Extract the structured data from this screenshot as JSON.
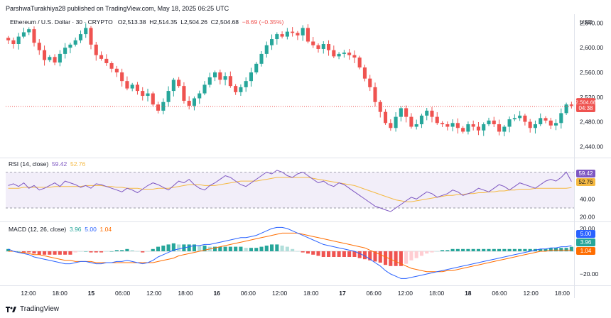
{
  "header": {
    "text": "ParshwaTurakhiya28 published on TradingView.com, May 18, 2025 06:25 UTC"
  },
  "symbol_bar": {
    "name": "Ethereum / U.S. Dollar · 30 · CRYPTO",
    "o": "O2,513.38",
    "h": "H2,514.35",
    "l": "L2,504.26",
    "c": "C2,504.68",
    "change": "−8.69 (−0.35%)"
  },
  "currency": "USD",
  "price_badge": {
    "price": "2,504.68",
    "countdown": "04:38"
  },
  "rsi_legend": {
    "label": "RSI (14, close)",
    "rsi": "59.42",
    "ma": "52.76"
  },
  "macd_legend": {
    "label": "MACD (12, 26, close)",
    "hist": "3.96",
    "macd": "5.00",
    "signal": "1.04"
  },
  "branding": {
    "text": "TradingView"
  },
  "colors": {
    "up": "#26a69a",
    "down": "#ef5350",
    "rsi": "#7e57c2",
    "rsi_ma": "#f5b942",
    "macd": "#2962ff",
    "signal": "#ff6d00"
  },
  "chart_data": [
    {
      "type": "candlestick",
      "title": "Ethereum / U.S. Dollar · 30 · CRYPTO",
      "x_ticks": [
        "12:00",
        "18:00",
        "15",
        "06:00",
        "12:00",
        "18:00",
        "16",
        "06:00",
        "12:00",
        "18:00",
        "17",
        "06:00",
        "12:00",
        "18:00",
        "18",
        "06:00",
        "12:00",
        "18:00"
      ],
      "y_ticks": [
        2440,
        2480,
        2520,
        2560,
        2600,
        2640
      ],
      "ylim": [
        2422,
        2652
      ],
      "last_price": 2504.68,
      "closes": [
        2612,
        2606,
        2618,
        2625,
        2630,
        2608,
        2596,
        2580,
        2585,
        2576,
        2590,
        2600,
        2605,
        2612,
        2622,
        2632,
        2605,
        2588,
        2582,
        2575,
        2566,
        2560,
        2546,
        2534,
        2540,
        2530,
        2522,
        2526,
        2508,
        2498,
        2512,
        2530,
        2548,
        2538,
        2514,
        2506,
        2518,
        2526,
        2540,
        2552,
        2560,
        2548,
        2554,
        2538,
        2528,
        2536,
        2546,
        2560,
        2574,
        2590,
        2604,
        2614,
        2622,
        2618,
        2626,
        2624,
        2620,
        2632,
        2610,
        2604,
        2598,
        2606,
        2596,
        2586,
        2590,
        2592,
        2588,
        2584,
        2568,
        2550,
        2536,
        2512,
        2496,
        2478,
        2470,
        2488,
        2502,
        2488,
        2472,
        2476,
        2490,
        2498,
        2488,
        2478,
        2476,
        2472,
        2478,
        2470,
        2464,
        2476,
        2472,
        2466,
        2476,
        2482,
        2476,
        2464,
        2472,
        2484,
        2486,
        2490,
        2480,
        2470,
        2476,
        2486,
        2482,
        2474,
        2478,
        2494,
        2508,
        2506
      ]
    },
    {
      "type": "line",
      "title": "RSI (14, close)",
      "y_ticks": [
        20,
        40
      ],
      "ylim": [
        15,
        83
      ],
      "levels": [
        70,
        30
      ],
      "series": [
        {
          "name": "RSI",
          "values": [
            55,
            57,
            54,
            58,
            52,
            55,
            50,
            52,
            55,
            58,
            54,
            60,
            58,
            56,
            53,
            55,
            52,
            57,
            56,
            54,
            52,
            50,
            48,
            52,
            50,
            47,
            51,
            55,
            58,
            56,
            53,
            50,
            55,
            60,
            58,
            62,
            56,
            52,
            50,
            55,
            58,
            62,
            66,
            64,
            60,
            56,
            54,
            58,
            62,
            66,
            70,
            68,
            72,
            70,
            66,
            64,
            68,
            70,
            66,
            62,
            58,
            60,
            56,
            54,
            58,
            56,
            52,
            48,
            44,
            40,
            36,
            32,
            30,
            28,
            26,
            30,
            34,
            38,
            42,
            40,
            44,
            48,
            46,
            42,
            44,
            46,
            50,
            48,
            44,
            46,
            48,
            52,
            50,
            48,
            52,
            56,
            54,
            50,
            54,
            58,
            56,
            54,
            52,
            56,
            60,
            62,
            60,
            64,
            70,
            59.42
          ]
        },
        {
          "name": "RSI MA",
          "values": [
            52,
            52,
            52,
            53,
            53,
            53,
            53,
            53,
            53,
            54,
            54,
            54,
            54,
            54,
            54,
            55,
            55,
            55,
            55,
            54,
            54,
            53,
            53,
            52,
            52,
            52,
            51,
            51,
            51,
            52,
            52,
            52,
            53,
            54,
            55,
            56,
            56,
            56,
            55,
            55,
            55,
            56,
            57,
            58,
            59,
            60,
            60,
            60,
            60,
            61,
            62,
            63,
            64,
            64,
            64,
            64,
            64,
            64,
            64,
            63,
            62,
            61,
            60,
            59,
            58,
            57,
            56,
            55,
            53,
            51,
            49,
            47,
            45,
            43,
            41,
            39,
            38,
            37,
            37,
            38,
            39,
            40,
            41,
            42,
            43,
            44,
            44,
            45,
            45,
            46,
            46,
            47,
            47,
            48,
            48,
            49,
            49,
            50,
            50,
            51,
            51,
            51,
            52,
            52,
            52,
            52,
            52,
            52,
            52,
            52.76
          ]
        }
      ]
    },
    {
      "type": "bar+line",
      "title": "MACD (12, 26, close)",
      "y_ticks": [
        -20,
        20
      ],
      "ylim": [
        -30,
        25
      ],
      "series": [
        {
          "name": "MACD",
          "values": [
            2,
            0,
            -1,
            -2,
            -3,
            -5,
            -6,
            -7,
            -8,
            -9,
            -10,
            -11,
            -11,
            -10,
            -9,
            -9,
            -10,
            -11,
            -11,
            -10,
            -10,
            -9,
            -9,
            -8,
            -9,
            -10,
            -11,
            -10,
            -8,
            -5,
            -3,
            -1,
            1,
            2,
            3,
            4,
            5,
            5,
            6,
            6,
            7,
            8,
            9,
            10,
            11,
            12,
            12,
            13,
            14,
            16,
            18,
            20,
            21,
            21,
            20,
            18,
            16,
            14,
            12,
            10,
            8,
            6,
            5,
            4,
            3,
            2,
            1,
            0,
            -2,
            -4,
            -7,
            -10,
            -13,
            -17,
            -20,
            -22,
            -24,
            -24,
            -23,
            -22,
            -21,
            -20,
            -19,
            -18,
            -17,
            -16,
            -15,
            -14,
            -13,
            -12,
            -11,
            -10,
            -9,
            -8,
            -7,
            -6,
            -5,
            -4,
            -3,
            -2,
            -1,
            0,
            1,
            2,
            2,
            3,
            3,
            4,
            4,
            5
          ]
        },
        {
          "name": "Signal",
          "values": [
            0,
            0,
            -1,
            -1,
            -2,
            -3,
            -3,
            -4,
            -5,
            -6,
            -7,
            -8,
            -8,
            -9,
            -9,
            -9,
            -9,
            -10,
            -10,
            -10,
            -10,
            -10,
            -10,
            -10,
            -10,
            -10,
            -10,
            -10,
            -10,
            -9,
            -8,
            -7,
            -6,
            -4,
            -3,
            -2,
            -1,
            0,
            1,
            2,
            3,
            4,
            5,
            6,
            7,
            8,
            9,
            10,
            11,
            12,
            13,
            14,
            15,
            16,
            16,
            16,
            16,
            15,
            14,
            13,
            12,
            11,
            10,
            9,
            8,
            7,
            6,
            5,
            4,
            3,
            1,
            -1,
            -3,
            -5,
            -7,
            -9,
            -11,
            -13,
            -15,
            -16,
            -17,
            -18,
            -18,
            -18,
            -18,
            -17,
            -17,
            -16,
            -15,
            -14,
            -13,
            -12,
            -11,
            -10,
            -9,
            -8,
            -7,
            -6,
            -5,
            -4,
            -3,
            -2,
            -1,
            0,
            0,
            1,
            1,
            1,
            1,
            1
          ]
        },
        {
          "name": "Histogram",
          "values": [
            2,
            0,
            0,
            -1,
            -1,
            -2,
            -3,
            -3,
            -3,
            -3,
            -3,
            -3,
            -3,
            -1,
            0,
            0,
            -1,
            -1,
            -1,
            0,
            0,
            1,
            1,
            2,
            1,
            0,
            -1,
            0,
            2,
            4,
            5,
            6,
            7,
            6,
            6,
            6,
            6,
            5,
            5,
            4,
            4,
            4,
            4,
            4,
            4,
            4,
            3,
            3,
            3,
            4,
            5,
            6,
            6,
            5,
            4,
            2,
            0,
            -1,
            -2,
            -3,
            -4,
            -5,
            -5,
            -5,
            -5,
            -5,
            -5,
            -5,
            -6,
            -7,
            -8,
            -9,
            -10,
            -12,
            -13,
            -13,
            -13,
            -11,
            -8,
            -6,
            -4,
            -2,
            -1,
            0,
            1,
            1,
            2,
            2,
            2,
            2,
            2,
            2,
            2,
            2,
            2,
            2,
            2,
            2,
            2,
            2,
            2,
            2,
            2,
            2,
            2,
            3,
            3,
            3,
            3,
            3.96
          ]
        }
      ]
    }
  ]
}
